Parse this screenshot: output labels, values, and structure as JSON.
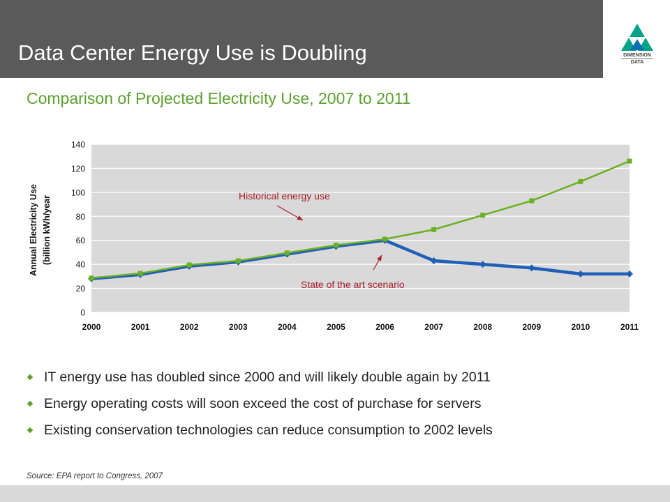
{
  "header": {
    "title": "Data Center Energy Use is Doubling"
  },
  "logo": {
    "name": "dimension-data-logo",
    "line1": "DIMENSION",
    "line2": "DATA"
  },
  "subtitle": "Comparison of Projected Electricity Use, 2007 to 2011",
  "chart_data": {
    "type": "line",
    "title": "",
    "ylabel_lines": [
      "Annual Electricity Use",
      "(billion kWh/year"
    ],
    "xlabel": "",
    "ylim": [
      0,
      140
    ],
    "yticks": [
      0,
      20,
      40,
      60,
      80,
      100,
      120,
      140
    ],
    "x": [
      "2000",
      "2001",
      "2002",
      "2003",
      "2004",
      "2005",
      "2006",
      "2007",
      "2008",
      "2009",
      "2010",
      "2011"
    ],
    "grid": true,
    "series": [
      {
        "name": "Historical energy use",
        "color": "#6ab023",
        "marker": "square",
        "values": [
          28.5,
          32.5,
          39.5,
          43,
          49.5,
          56,
          61,
          69,
          81,
          93,
          109,
          126
        ]
      },
      {
        "name": "State of the art scenario",
        "color": "#1f5fb8",
        "marker": "diamond",
        "values": [
          28,
          31.5,
          38.5,
          42,
          48.5,
          55,
          60,
          43,
          40,
          37,
          32,
          32
        ]
      }
    ],
    "annotations": [
      "Historical energy use",
      "State of the art scenario"
    ],
    "annotation_color": "#a8202a",
    "plot_background": "#d9d9d9"
  },
  "bullets": [
    "IT energy use has doubled since 2000 and will likely double again by 2011",
    "Energy operating costs will soon exceed the cost of purchase for servers",
    "Existing conservation technologies can reduce consumption to 2002 levels"
  ],
  "source": "Source: EPA report to Congress,  2007",
  "colors": {
    "header": "#5a5a5a",
    "accent_green": "#5aa02c",
    "footer": "#d9d9d9"
  }
}
